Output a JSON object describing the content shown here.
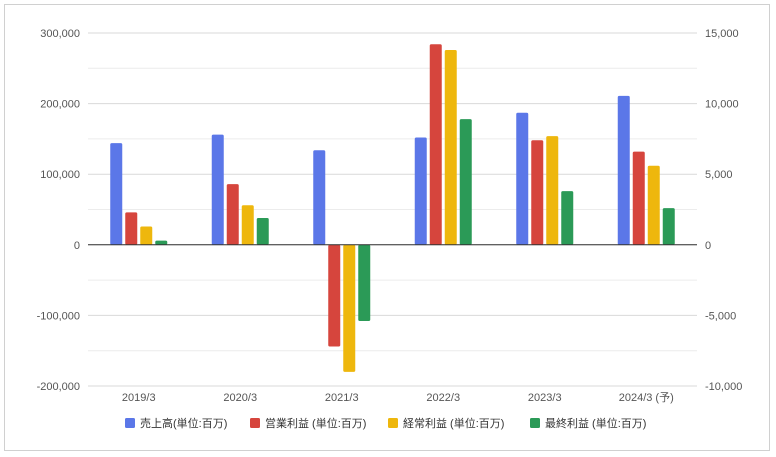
{
  "chart_data": {
    "type": "bar",
    "categories": [
      "2019/3",
      "2020/3",
      "2021/3",
      "2022/3",
      "2023/3",
      "2024/3 (予)"
    ],
    "series": [
      {
        "name": "売上高(単位:百万)",
        "color": "#5b77e8",
        "axis": "left",
        "values": [
          144000,
          156000,
          134000,
          152000,
          187000,
          211000
        ]
      },
      {
        "name": "営業利益 (単位:百万)",
        "color": "#d6453d",
        "axis": "right",
        "values": [
          2300,
          4300,
          -7200,
          14200,
          7400,
          6600
        ]
      },
      {
        "name": "経常利益 (単位:百万)",
        "color": "#eeb70d",
        "axis": "right",
        "values": [
          1300,
          2800,
          -9000,
          13800,
          7700,
          5600
        ]
      },
      {
        "name": "最終利益 (単位:百万)",
        "color": "#2b9a57",
        "axis": "right",
        "values": [
          300,
          1900,
          -5400,
          8900,
          3800,
          2600
        ]
      }
    ],
    "ylim_left": [
      -200000,
      300000
    ],
    "ylim_right": [
      -10000,
      15000
    ],
    "yticks_left": [
      "-200,000",
      "-100,000",
      "0",
      "100,000",
      "200,000",
      "300,000"
    ],
    "yticks_right": [
      "-10,000",
      "-5,000",
      "0",
      "5,000",
      "10,000",
      "15,000"
    ],
    "grid": true,
    "legend_position": "bottom"
  }
}
